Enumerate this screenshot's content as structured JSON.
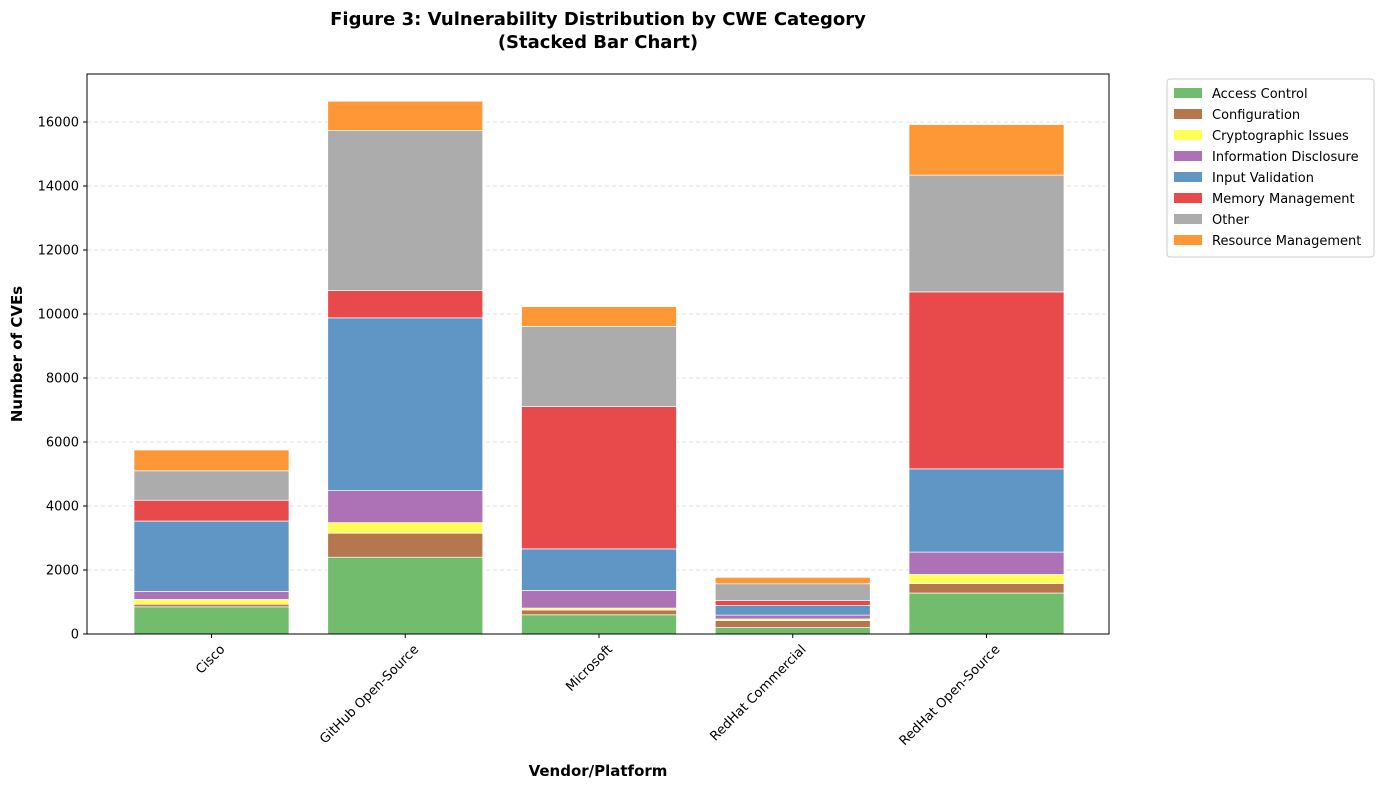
{
  "chart_data": {
    "type": "bar",
    "stacked": true,
    "title": "Figure 3: Vulnerability Distribution by CWE Category",
    "subtitle": "(Stacked Bar Chart)",
    "xlabel": "Vendor/Platform",
    "ylabel": "Number of CVEs",
    "ylim": [
      0,
      17500
    ],
    "yticks": [
      0,
      2000,
      4000,
      6000,
      8000,
      10000,
      12000,
      14000,
      16000
    ],
    "ytick_labels": [
      "0",
      "2000",
      "4000",
      "6000",
      "8000",
      "10000",
      "12000",
      "14000",
      "16000"
    ],
    "grid": "y-dashed",
    "legend_position": "outside-right-top",
    "categories": [
      "Cisco",
      "GitHub Open-Source",
      "Microsoft",
      "RedHat Commercial",
      "RedHat Open-Source"
    ],
    "series": [
      {
        "name": "Access Control",
        "color": "#72bc6e",
        "values": [
          850,
          2400,
          600,
          200,
          1280
        ]
      },
      {
        "name": "Configuration",
        "color": "#b6774f",
        "values": [
          80,
          750,
          150,
          220,
          300
        ]
      },
      {
        "name": "Cryptographic Issues",
        "color": "#ffff55",
        "values": [
          150,
          330,
          60,
          50,
          280
        ]
      },
      {
        "name": "Information Disclosure",
        "color": "#ad72b5",
        "values": [
          250,
          1000,
          550,
          120,
          700
        ]
      },
      {
        "name": "Input Validation",
        "color": "#6096c6",
        "values": [
          2200,
          5400,
          1300,
          300,
          2600
        ]
      },
      {
        "name": "Memory Management",
        "color": "#e8494a",
        "values": [
          650,
          850,
          4450,
          160,
          5530
        ]
      },
      {
        "name": "Other",
        "color": "#acacac",
        "values": [
          920,
          5000,
          2500,
          520,
          3650
        ]
      },
      {
        "name": "Resource Management",
        "color": "#fe9836",
        "values": [
          650,
          920,
          620,
          200,
          1580
        ]
      }
    ]
  }
}
